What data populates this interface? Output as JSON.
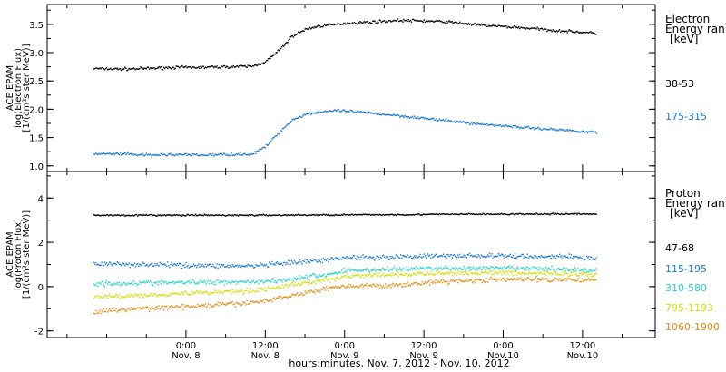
{
  "chart_data": [
    {
      "type": "scatter",
      "panel": "electron",
      "ylabel_lines": [
        "ACE EPAM",
        "log(Electron Flux)",
        "[1/(cm²s ster MeV)]"
      ],
      "legend_title": [
        "Electron",
        "Energy ran",
        "[keV]"
      ],
      "ylim": [
        0.9,
        3.85
      ],
      "yticks": [
        "1.0",
        "1.5",
        "2.0",
        "2.5",
        "3.0",
        "3.5"
      ],
      "ytick_values": [
        1.0,
        1.5,
        2.0,
        2.5,
        3.0,
        3.5
      ],
      "series": [
        {
          "name": "38-53",
          "color": "#000000",
          "x": [
            -14,
            -10,
            -6,
            -2,
            2,
            6,
            10,
            12,
            14,
            16,
            18,
            20,
            22,
            24,
            28,
            32,
            36,
            40,
            44,
            48,
            52,
            56,
            60,
            62
          ],
          "y": [
            2.73,
            2.72,
            2.73,
            2.75,
            2.75,
            2.76,
            2.77,
            2.85,
            3.05,
            3.3,
            3.42,
            3.48,
            3.5,
            3.53,
            3.55,
            3.58,
            3.57,
            3.55,
            3.5,
            3.47,
            3.44,
            3.4,
            3.37,
            3.35
          ]
        },
        {
          "name": "175-315",
          "color": "#1c78d4",
          "x": [
            -14,
            -10,
            -6,
            -2,
            2,
            6,
            10,
            12,
            14,
            16,
            18,
            20,
            22,
            24,
            28,
            32,
            36,
            40,
            44,
            48,
            52,
            56,
            60,
            62
          ],
          "y": [
            1.22,
            1.22,
            1.2,
            1.21,
            1.2,
            1.21,
            1.22,
            1.35,
            1.6,
            1.82,
            1.92,
            1.96,
            1.98,
            1.98,
            1.94,
            1.9,
            1.85,
            1.8,
            1.75,
            1.72,
            1.68,
            1.65,
            1.62,
            1.6
          ]
        }
      ]
    },
    {
      "type": "scatter",
      "panel": "proton",
      "ylabel_lines": [
        "ACE EPAM",
        "log(Proton Flux)",
        "[1/(cm²s ster MeV)]"
      ],
      "legend_title": [
        "Proton",
        "Energy ran",
        "[keV]"
      ],
      "ylim": [
        -2.3,
        5.2
      ],
      "yticks": [
        "-2",
        "0",
        "2",
        "4"
      ],
      "ytick_values": [
        -2,
        0,
        2,
        4
      ],
      "series": [
        {
          "name": "47-68",
          "color": "#000000",
          "x": [
            -14,
            -6,
            2,
            10,
            18,
            26,
            34,
            42,
            50,
            58,
            62
          ],
          "y": [
            3.25,
            3.25,
            3.25,
            3.25,
            3.26,
            3.27,
            3.28,
            3.3,
            3.3,
            3.31,
            3.31
          ]
        },
        {
          "name": "115-195",
          "color": "#1c78d4",
          "x": [
            -14,
            -6,
            2,
            10,
            14,
            18,
            22,
            24,
            30,
            36,
            42,
            50,
            58,
            62
          ],
          "y": [
            1.05,
            1.03,
            0.98,
            0.95,
            1.05,
            1.15,
            1.25,
            1.35,
            1.35,
            1.4,
            1.42,
            1.4,
            1.38,
            1.3
          ]
        },
        {
          "name": "310-580",
          "color": "#22d3cc",
          "x": [
            -14,
            -6,
            2,
            10,
            14,
            18,
            22,
            24,
            30,
            36,
            42,
            50,
            58,
            62
          ],
          "y": [
            0.15,
            0.2,
            0.22,
            0.25,
            0.3,
            0.45,
            0.6,
            0.75,
            0.8,
            0.85,
            0.85,
            0.85,
            0.8,
            0.75
          ]
        },
        {
          "name": "795-1193",
          "color": "#d0e000",
          "x": [
            -14,
            -6,
            2,
            10,
            14,
            18,
            22,
            24,
            30,
            36,
            42,
            50,
            58,
            62
          ],
          "y": [
            -0.45,
            -0.35,
            -0.25,
            -0.15,
            0.0,
            0.2,
            0.35,
            0.5,
            0.55,
            0.6,
            0.65,
            0.65,
            0.6,
            0.55
          ]
        },
        {
          "name": "1060-1900",
          "color": "#e58a10",
          "x": [
            -14,
            -6,
            2,
            10,
            14,
            18,
            22,
            24,
            30,
            36,
            42,
            50,
            58,
            62
          ],
          "y": [
            -1.1,
            -0.95,
            -0.85,
            -0.7,
            -0.5,
            -0.25,
            0.0,
            0.05,
            0.05,
            0.2,
            0.3,
            0.35,
            0.35,
            0.3
          ]
        }
      ]
    }
  ],
  "xaxis": {
    "xlim": [
      -21,
      71
    ],
    "major_ticks": [
      0,
      12,
      24,
      36,
      48,
      60
    ],
    "minor_ticks": [
      -18,
      -12,
      -6,
      6,
      18,
      30,
      42,
      54,
      66
    ],
    "tick_time_labels": [
      "0:00",
      "12:00",
      "0:00",
      "12:00",
      "0:00",
      "12:00"
    ],
    "tick_date_labels": [
      "Nov. 8",
      "Nov. 8",
      "Nov. 9",
      "Nov. 9",
      "Nov.10",
      "Nov.10"
    ],
    "title": "hours:minutes, Nov.  7, 2012 - Nov. 10, 2012"
  }
}
